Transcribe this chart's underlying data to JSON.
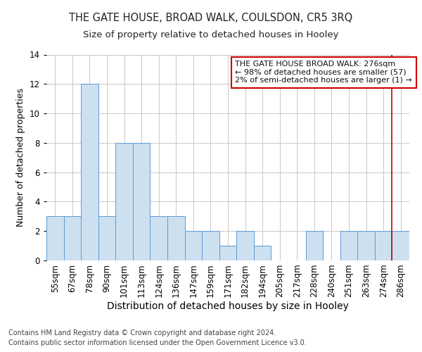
{
  "title": "THE GATE HOUSE, BROAD WALK, COULSDON, CR5 3RQ",
  "subtitle": "Size of property relative to detached houses in Hooley",
  "xlabel": "Distribution of detached houses by size in Hooley",
  "ylabel": "Number of detached properties",
  "footer1": "Contains HM Land Registry data © Crown copyright and database right 2024.",
  "footer2": "Contains public sector information licensed under the Open Government Licence v3.0.",
  "bins": [
    "55sqm",
    "67sqm",
    "78sqm",
    "90sqm",
    "101sqm",
    "113sqm",
    "124sqm",
    "136sqm",
    "147sqm",
    "159sqm",
    "171sqm",
    "182sqm",
    "194sqm",
    "205sqm",
    "217sqm",
    "228sqm",
    "240sqm",
    "251sqm",
    "263sqm",
    "274sqm",
    "286sqm"
  ],
  "values": [
    3,
    3,
    12,
    3,
    8,
    8,
    3,
    3,
    2,
    2,
    1,
    2,
    1,
    0,
    0,
    2,
    0,
    2,
    2,
    2,
    2
  ],
  "bar_color": "#cde0f0",
  "bar_edge_color": "#5b9bd5",
  "highlight_line_color": "#cc0000",
  "annotation_line1": "THE GATE HOUSE BROAD WALK: 276sqm",
  "annotation_line2": "← 98% of detached houses are smaller (57)",
  "annotation_line3": "2% of semi-detached houses are larger (1) →",
  "annotation_box_color": "#ffffff",
  "annotation_box_edge": "#cc0000",
  "ylim": [
    0,
    14
  ],
  "yticks": [
    0,
    2,
    4,
    6,
    8,
    10,
    12,
    14
  ],
  "grid_color": "#c8c8c8",
  "title_fontsize": 10.5,
  "subtitle_fontsize": 9.5,
  "xlabel_fontsize": 10,
  "ylabel_fontsize": 9,
  "tick_fontsize": 8.5,
  "annotation_fontsize": 8,
  "footer_fontsize": 7
}
